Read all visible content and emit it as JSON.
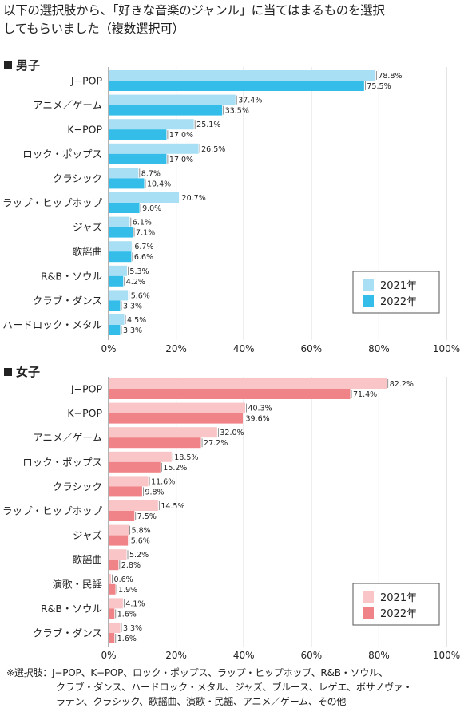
{
  "title_lines": [
    "以下の選択肢から、「好きな音楽のジャンル」に当てはまるものを選択",
    "してもらいました（複数選択可）"
  ],
  "chart_data": [
    {
      "type": "bar",
      "orientation": "horizontal",
      "title": "男子",
      "categories": [
        "J−POP",
        "アニメ／ゲーム",
        "K−POP",
        "ロック・ポップス",
        "クラシック",
        "ラップ・ヒップホップ",
        "ジャズ",
        "歌謡曲",
        "R&B・ソウル",
        "クラブ・ダンス",
        "ハードロック・メタル"
      ],
      "series": [
        {
          "name": "2021年",
          "values": [
            78.8,
            37.4,
            25.1,
            26.5,
            8.7,
            20.7,
            6.1,
            6.7,
            5.3,
            5.6,
            4.5
          ],
          "labels": [
            "78.8%",
            "37.4%",
            "25.1%",
            "26.5%",
            "8.7%",
            "20.7%",
            "6.1%",
            "6.7%",
            "5.3%",
            "5.6%",
            "4.5%"
          ],
          "color": "#a9dff4"
        },
        {
          "name": "2022年",
          "values": [
            75.5,
            33.5,
            17.0,
            17.0,
            10.4,
            9.0,
            7.1,
            6.6,
            4.2,
            3.3,
            3.3
          ],
          "labels": [
            "75.5%",
            "33.5%",
            "17.0%",
            "17.0%",
            "10.4%",
            "9.0%",
            "7.1%",
            "6.6%",
            "4.2%",
            "3.3%",
            "3.3%"
          ],
          "color": "#33bde8"
        }
      ],
      "xlim": [
        0,
        100
      ],
      "xticks": [
        "0%",
        "20%",
        "40%",
        "60%",
        "80%",
        "100%"
      ],
      "grid": true,
      "legend_position": "bottom-right"
    },
    {
      "type": "bar",
      "orientation": "horizontal",
      "title": "女子",
      "categories": [
        "J−POP",
        "K−POP",
        "アニメ／ゲーム",
        "ロック・ポップス",
        "クラシック",
        "ラップ・ヒップホップ",
        "ジャズ",
        "歌謡曲",
        "演歌・民謡",
        "R&B・ソウル",
        "クラブ・ダンス"
      ],
      "series": [
        {
          "name": "2021年",
          "values": [
            82.2,
            40.3,
            32.0,
            18.5,
            11.6,
            14.5,
            5.8,
            5.2,
            0.6,
            4.1,
            3.3
          ],
          "labels": [
            "82.2%",
            "40.3%",
            "32.0%",
            "18.5%",
            "11.6%",
            "14.5%",
            "5.8%",
            "5.2%",
            "0.6%",
            "4.1%",
            "3.3%"
          ],
          "color": "#f9c5c7"
        },
        {
          "name": "2022年",
          "values": [
            71.4,
            39.6,
            27.2,
            15.2,
            9.8,
            7.5,
            5.6,
            2.8,
            1.9,
            1.6,
            1.6
          ],
          "labels": [
            "71.4%",
            "39.6%",
            "27.2%",
            "15.2%",
            "9.8%",
            "7.5%",
            "5.6%",
            "2.8%",
            "1.9%",
            "1.6%",
            "1.6%"
          ],
          "color": "#ef8387"
        }
      ],
      "xlim": [
        0,
        100
      ],
      "xticks": [
        "0%",
        "20%",
        "40%",
        "60%",
        "80%",
        "100%"
      ],
      "grid": true,
      "legend_position": "bottom-right"
    }
  ],
  "footnote_lines": [
    "※選択肢：J−POP、K−POP、ロック・ポップス、ラップ・ヒップホップ、R&B・ソウル、",
    "クラブ・ダンス、ハードロック・メタル、ジャズ、ブルース、レゲエ、ボサノヴァ・",
    "ラテン、クラシック、歌謡曲、演歌・民謡、アニメ／ゲーム、その他"
  ]
}
